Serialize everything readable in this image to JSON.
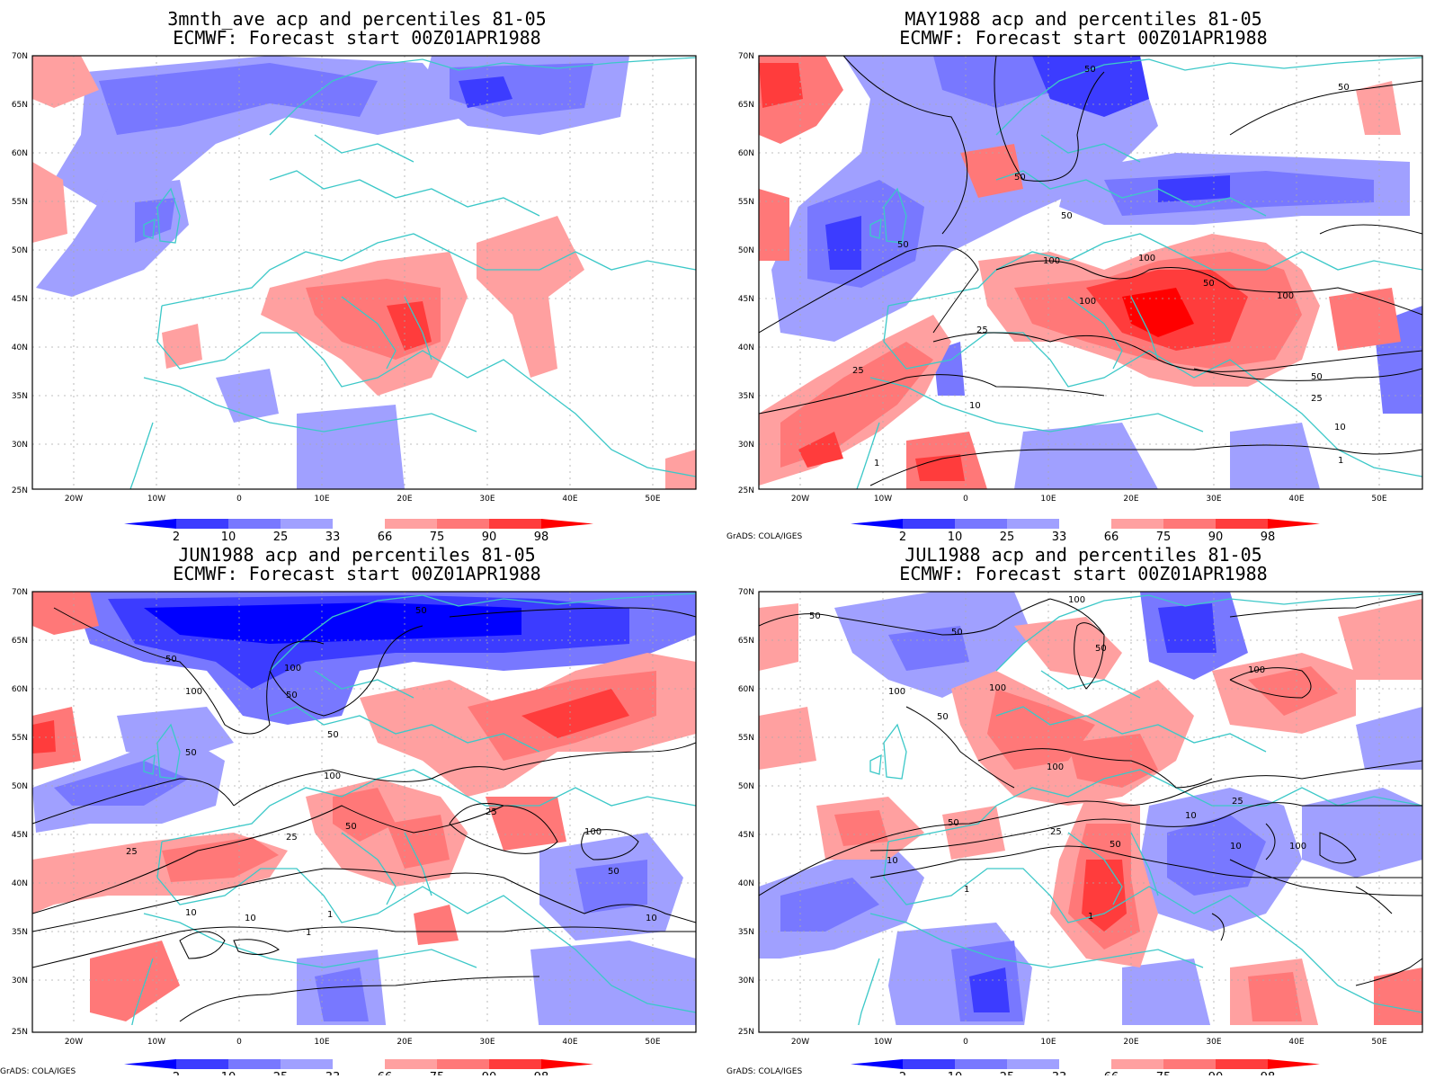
{
  "colors": {
    "blue_strong": "#0000ff",
    "blue_mid": "#3c3cff",
    "blue_light": "#7878ff",
    "blue_pale": "#a0a0ff",
    "red_pale": "#ffa0a0",
    "red_light": "#ff7878",
    "red_mid": "#ff3c3c",
    "red_strong": "#ff0000",
    "coastline": "#3cc8c8",
    "contour": "#000000"
  },
  "axes": {
    "lon_ticks": [
      "20W",
      "10W",
      "0",
      "10E",
      "20E",
      "30E",
      "40E",
      "50E"
    ],
    "lat_ticks": [
      "70N",
      "65N",
      "60N",
      "55N",
      "50N",
      "45N",
      "40N",
      "35N",
      "30N",
      "25N"
    ]
  },
  "colorbar": {
    "labels": [
      "2",
      "10",
      "25",
      "33",
      "66",
      "75",
      "90",
      "98"
    ]
  },
  "credit": "GrADS: COLA/IGES",
  "panels": [
    {
      "title_line1": "3mnth_ave acp and percentiles 81-05",
      "title_line2": "ECMWF: Forecast start 00Z01APR1988",
      "show_credit": false,
      "contour_labels": []
    },
    {
      "title_line1": "MAY1988 acp and percentiles 81-05",
      "title_line2": "ECMWF: Forecast start 00Z01APR1988",
      "show_credit": true,
      "contour_labels": [
        "50",
        "50",
        "50",
        "50",
        "50",
        "100",
        "100",
        "100",
        "50",
        "25",
        "25",
        "10",
        "100",
        "1",
        "1",
        "10",
        "50",
        "25"
      ]
    },
    {
      "title_line1": "JUN1988 acp and percentiles 81-05",
      "title_line2": "ECMWF: Forecast start 00Z01APR1988",
      "show_credit": true,
      "contour_labels": [
        "50",
        "50",
        "100",
        "50",
        "50",
        "50",
        "100",
        "100",
        "50",
        "25",
        "25",
        "100",
        "25",
        "10",
        "10",
        "1",
        "1",
        "50",
        "10"
      ]
    },
    {
      "title_line1": "JUL1988 acp and percentiles 81-05",
      "title_line2": "ECMWF: Forecast start 00Z01APR1988",
      "show_credit": true,
      "contour_labels": [
        "50",
        "50",
        "100",
        "50",
        "100",
        "100",
        "50",
        "100",
        "100",
        "50",
        "25",
        "10",
        "1",
        "1",
        "50",
        "10",
        "100",
        "25",
        "10"
      ]
    }
  ]
}
